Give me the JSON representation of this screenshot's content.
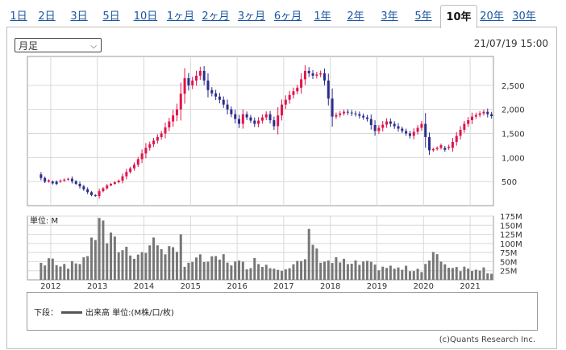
{
  "tabs": [
    {
      "label": "1日",
      "active": false
    },
    {
      "label": "2日",
      "active": false
    },
    {
      "label": "3日",
      "active": false
    },
    {
      "label": "5日",
      "active": false
    },
    {
      "label": "10日",
      "active": false
    },
    {
      "label": "1ヶ月",
      "active": false
    },
    {
      "label": "2ヶ月",
      "active": false
    },
    {
      "label": "3ヶ月",
      "active": false
    },
    {
      "label": "6ヶ月",
      "active": false
    },
    {
      "label": "1年",
      "active": false
    },
    {
      "label": "2年",
      "active": false
    },
    {
      "label": "3年",
      "active": false
    },
    {
      "label": "5年",
      "active": false
    },
    {
      "label": "10年",
      "active": true
    },
    {
      "label": "20年",
      "active": false
    },
    {
      "label": "30年",
      "active": false
    }
  ],
  "period_select": {
    "value": "月足"
  },
  "timestamp": "21/07/19 15:00",
  "volume_unit_label": "単位: M",
  "legend": {
    "prefix": "下段：",
    "text": "出来高 単位:(M株/口/枚)"
  },
  "copyright": "(c)Quants Research Inc.",
  "colors": {
    "up": "#e0144c",
    "down": "#2c2c8c",
    "volume": "#777777",
    "grid": "#d8d8d8"
  },
  "chart_data": {
    "type": "candlestick",
    "interval": "monthly",
    "price_axis": {
      "ticks": [
        500,
        1000,
        1500,
        2000,
        2500
      ],
      "tick_labels": [
        "500",
        "1,000",
        "1,500",
        "2,000",
        "2,500"
      ],
      "range": [
        0,
        3100
      ],
      "position": "right"
    },
    "volume_axis": {
      "ticks": [
        25,
        50,
        75,
        100,
        125,
        150,
        175
      ],
      "tick_labels": [
        "25M",
        "50M",
        "75M",
        "100M",
        "125M",
        "150M",
        "175M"
      ],
      "range": [
        0,
        175
      ],
      "position": "right"
    },
    "x_axis": {
      "labels": [
        "2012",
        "2013",
        "2014",
        "2015",
        "2016",
        "2017",
        "2018",
        "2019",
        "2020",
        "2021"
      ],
      "range": [
        "2011-07",
        "2021-07"
      ]
    },
    "grid": true,
    "price_path": [
      [
        "2011-10",
        650
      ],
      [
        "2011-12",
        500
      ],
      [
        "2012-03",
        500
      ],
      [
        "2012-06",
        560
      ],
      [
        "2012-09",
        400
      ],
      [
        "2012-12",
        220
      ],
      [
        "2013-01",
        200
      ],
      [
        "2013-02",
        300
      ],
      [
        "2013-04",
        420
      ],
      [
        "2013-07",
        520
      ],
      [
        "2013-09",
        700
      ],
      [
        "2013-11",
        850
      ],
      [
        "2014-02",
        1200
      ],
      [
        "2014-06",
        1500
      ],
      [
        "2014-10",
        2000
      ],
      [
        "2014-12",
        2650
      ],
      [
        "2015-01",
        2500
      ],
      [
        "2015-04",
        2800
      ],
      [
        "2015-06",
        2400
      ],
      [
        "2015-09",
        2200
      ],
      [
        "2015-11",
        2000
      ],
      [
        "2016-02",
        1700
      ],
      [
        "2016-03",
        1900
      ],
      [
        "2016-06",
        1700
      ],
      [
        "2016-09",
        1900
      ],
      [
        "2016-11",
        1650
      ],
      [
        "2017-01",
        2100
      ],
      [
        "2017-03",
        2300
      ],
      [
        "2017-05",
        2450
      ],
      [
        "2017-07",
        2800
      ],
      [
        "2017-09",
        2700
      ],
      [
        "2017-11",
        2750
      ],
      [
        "2017-12",
        2600
      ],
      [
        "2018-02",
        1850
      ],
      [
        "2018-05",
        1950
      ],
      [
        "2018-08",
        1900
      ],
      [
        "2018-11",
        1800
      ],
      [
        "2019-01",
        1550
      ],
      [
        "2019-04",
        1750
      ],
      [
        "2019-07",
        1600
      ],
      [
        "2019-10",
        1450
      ],
      [
        "2020-01",
        1700
      ],
      [
        "2020-03",
        1150
      ],
      [
        "2020-05",
        1200
      ],
      [
        "2020-08",
        1200
      ],
      [
        "2020-10",
        1450
      ],
      [
        "2020-12",
        1700
      ],
      [
        "2021-02",
        1850
      ],
      [
        "2021-05",
        1950
      ],
      [
        "2021-06",
        1900
      ]
    ],
    "volume_path": [
      [
        "2011-10",
        45
      ],
      [
        "2012-01",
        50
      ],
      [
        "2012-06",
        40
      ],
      [
        "2012-09",
        60
      ],
      [
        "2012-11",
        90
      ],
      [
        "2013-01",
        170
      ],
      [
        "2013-03",
        110
      ],
      [
        "2013-06",
        90
      ],
      [
        "2013-09",
        80
      ],
      [
        "2013-12",
        70
      ],
      [
        "2014-02",
        95
      ],
      [
        "2014-05",
        100
      ],
      [
        "2014-08",
        70
      ],
      [
        "2014-11",
        50
      ],
      [
        "2015-03",
        55
      ],
      [
        "2015-06",
        50
      ],
      [
        "2015-09",
        60
      ],
      [
        "2015-12",
        45
      ],
      [
        "2016-03",
        40
      ],
      [
        "2016-06",
        55
      ],
      [
        "2016-09",
        35
      ],
      [
        "2016-12",
        35
      ],
      [
        "2017-03",
        45
      ],
      [
        "2017-06",
        45
      ],
      [
        "2017-07",
        140
      ],
      [
        "2017-09",
        70
      ],
      [
        "2017-12",
        50
      ],
      [
        "2018-03",
        50
      ],
      [
        "2018-06",
        40
      ],
      [
        "2018-09",
        45
      ],
      [
        "2018-12",
        35
      ],
      [
        "2019-03",
        35
      ],
      [
        "2019-06",
        30
      ],
      [
        "2019-09",
        30
      ],
      [
        "2019-12",
        30
      ],
      [
        "2020-03",
        70
      ],
      [
        "2020-06",
        45
      ],
      [
        "2020-09",
        35
      ],
      [
        "2020-12",
        30
      ],
      [
        "2021-03",
        35
      ],
      [
        "2021-06",
        20
      ]
    ]
  }
}
